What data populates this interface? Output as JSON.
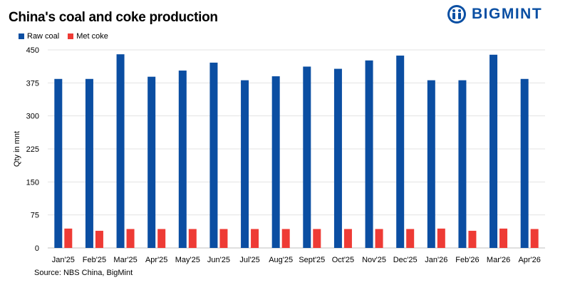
{
  "title": "China's coal and coke production",
  "brand": {
    "name": "BIGMINT",
    "logo_color": "#0a4fa3"
  },
  "source": "Source: NBS China, BigMint",
  "chart_data": {
    "type": "bar",
    "ylabel": "Qty in mnt",
    "ylim": [
      0,
      450
    ],
    "yticks": [
      0,
      75,
      150,
      225,
      300,
      375,
      450
    ],
    "grid": true,
    "legend_position": "top-left",
    "categories": [
      "Jan'25",
      "Feb'25",
      "Mar'25",
      "Apr'25",
      "May'25",
      "Jun'25",
      "Jul'25",
      "Aug'25",
      "Sept'25",
      "Oct'25",
      "Nov'25",
      "Dec'25",
      "Jan'26",
      "Feb'26",
      "Mar'26",
      "Apr'26"
    ],
    "series": [
      {
        "name": "Raw coal",
        "color": "#0b4ea2",
        "values": [
          384,
          384,
          440,
          389,
          403,
          421,
          381,
          390,
          412,
          407,
          426,
          437,
          381,
          381,
          439,
          384
        ]
      },
      {
        "name": "Met coke",
        "color": "#ee3b35",
        "values": [
          44,
          39,
          43,
          43,
          43,
          43,
          43,
          43,
          43,
          43,
          43,
          43,
          44,
          39,
          44,
          43
        ]
      }
    ]
  }
}
